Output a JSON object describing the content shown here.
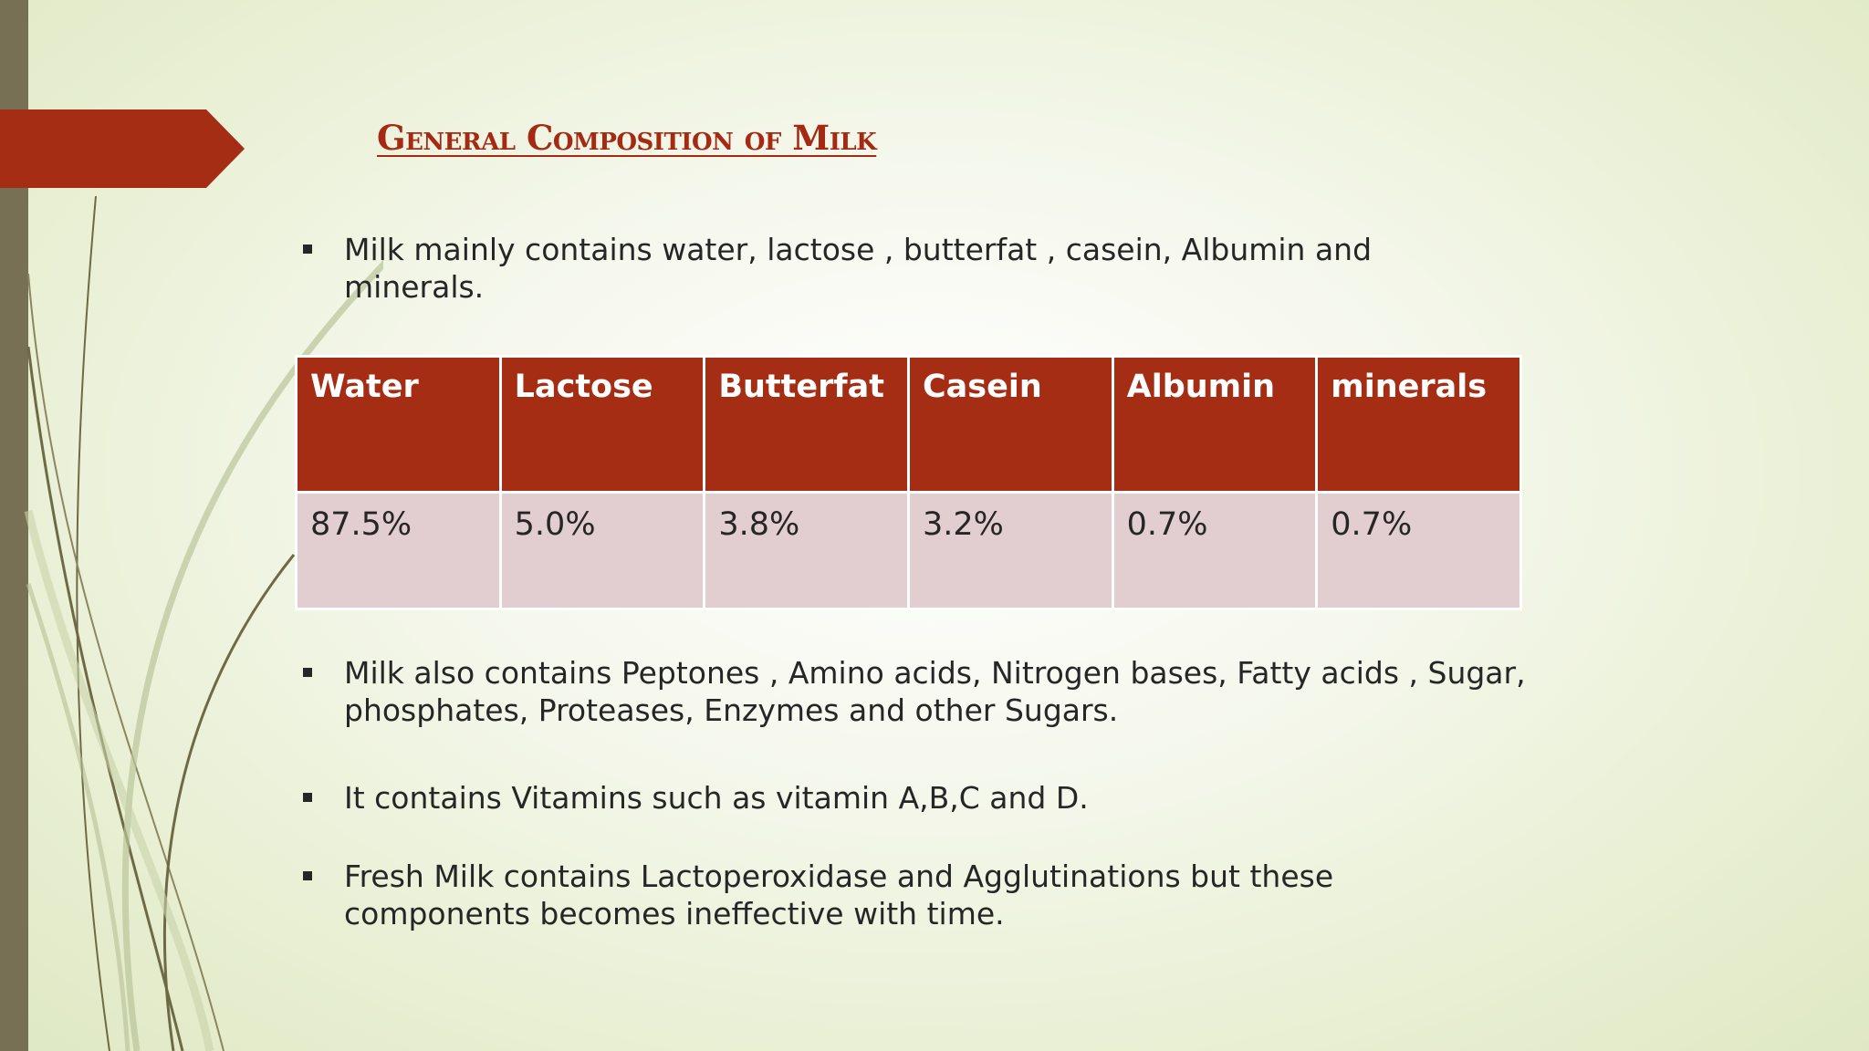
{
  "slide": {
    "title": "General Composition of Milk",
    "colors": {
      "accent": "#a42d14",
      "table_row": "#e2ced1",
      "left_bar": "#777054"
    }
  },
  "intro_bullets": [
    "Milk mainly contains water, lactose , butterfat , casein, Albumin and minerals."
  ],
  "composition_table": {
    "headers": [
      "Water",
      "Lactose",
      "Butterfat",
      "Casein",
      "Albumin",
      "minerals"
    ],
    "values": [
      "87.5%",
      "5.0%",
      "3.8%",
      "3.2%",
      "0.7%",
      "0.7%"
    ]
  },
  "detail_bullets": [
    "Milk also contains Peptones , Amino acids, Nitrogen bases, Fatty acids , Sugar, phosphates, Proteases, Enzymes and other Sugars.",
    "It contains Vitamins such as vitamin A,B,C and D.",
    "Fresh Milk contains Lactoperoxidase and Agglutinations but these components becomes ineffective with time."
  ]
}
